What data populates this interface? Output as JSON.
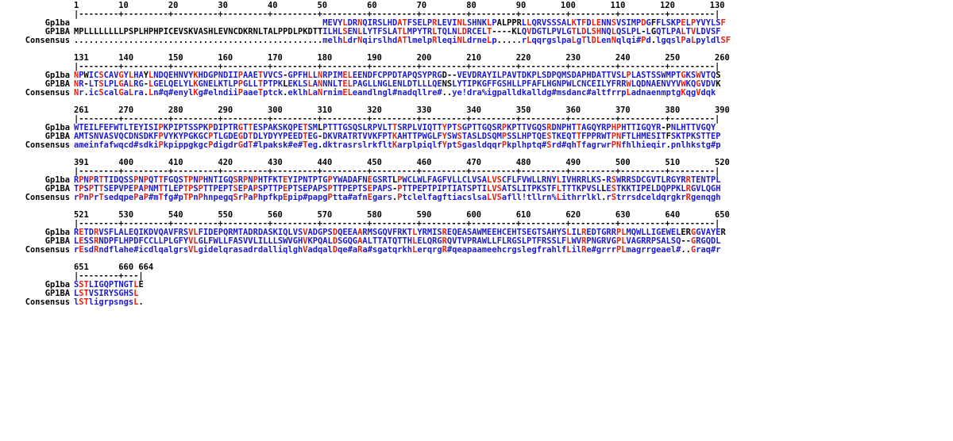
{
  "consensus_colors": {
    "identical": "#e8200e",
    "similar": "#1b1ad0",
    "other": "#000000"
  },
  "blocks": [
    {
      "ruler": "1        10        20        30        40        50        60        70        80        90       100       110       120       130",
      "ticks": "|--------+---------+---------+---------+---------+---------+---------+---------+---------+---------+---------+---------+---------|",
      "rows": [
        {
          "name": "Gp1ba",
          "seq": "                                                  MEVYLDRNQIRSLHDATFSELPRLEVINLSHNKLPALPPRLLQRVSSSALKTFDLENNSVSIMPDGFFLSKPELPYVYLSF"
        },
        {
          "name": "GP1BA",
          "seq": "MPLLLLLLLLPSPLHPHPICEVSKVASHLEVNCDKRNLTALPPDLPKDTTILHLSENLLYTFSLATLMPYTRLTQLNLDRCELT----KLQVDGTLPVLGTLDLSHNQLQSLPL-LGQTLPALTVLDVSF"
        },
        {
          "name": "Consensus",
          "seq": "..................................................melhLdrNqirslhdATlmelpRleqiNLdrneLp.....rLqqrgslpaLgTlDLenNqlqi#Pd.lgqslPaLpyldlSF"
        }
      ]
    },
    {
      "ruler": "131      140       150       160       170       180       190       200       210       220       230       240       250       260",
      "ticks": "|--------+---------+---------+---------+---------+---------+---------+---------+---------+---------+---------+---------+---------|",
      "rows": [
        {
          "name": "Gp1ba",
          "seq": "NPWICSCAVGYLHAYLNDQEHNVYKHDGPNDIIPAAETVVCS-GPFHLLNRPIMELEENDFCPPDTAPQSYPRGD--VEVDRAYILPAVTDKPLSDPQMSDAPHDATTVSLPLASTSSWMPTGKSWVTQS"
        },
        {
          "name": "GP1BA",
          "seq": "NR-LTSLPLGALRG-LGELQELYLKGNELKTLPPGLLTPTPKLEKLSLANNNLTELPAGLLNGLENLDTLLLQENSLYTIPKGFFGSHLLPFAFLHGNPWLCNCEILYFRRWLQDNAENVYVWKQGVDVK"
        },
        {
          "name": "Consensus",
          "seq": "Nr.icScalGaLra.Ln#q#enylKg#elndiiPaaeTptck.eklhLaNrnimELeandlngl#nadqllre#..ye!dra%igpalldkalldg#msdanc#altfrrpLadnaenmptgKqgVdqk"
        }
      ]
    },
    {
      "ruler": "261      270       280       290       300       310       320       330       340       350       360       370       380       390",
      "ticks": "|--------+---------+---------+---------+---------+---------+---------+---------+---------+---------+---------+---------+---------|",
      "rows": [
        {
          "name": "Gp1ba",
          "seq": "WTEILFEFWTLTEYISIPKPIPTSSPKPDIPTRGTTESPAKSKQPETSMLPTTTGSQSLRPVLTTSRPLVIQTTYPTSGPTTGQSRPKPTTVGQSRDNPHTTAGQYRPHPHTTIGQYR-PNLHTTVGQY"
        },
        {
          "name": "GP1BA",
          "seq": "AMTSNVASVQCDNSDKFPVYKYPGKGCPTLGDEGDTDLYDYYPEEDTEG-DKVRATRTVVKFPTKAHTTPWGLFYSWSTASLDSQMPSSLHPTQESTKEQTTFPPRWTPNFTLHMESITFSKTPKSTTEP"
        },
        {
          "name": "Consensus",
          "seq": "ameinfafwqcd#sdkiPkpippgkgcPdigdrGdT#lpaksk#e#Teg.dktrasrslrkfltKarplpiqlfYptSgasldqqrPkplhptq#Srd#qhTfagrwrPNfhlhieqir.pnlhkstg#p"
        }
      ]
    },
    {
      "ruler": "391      400       410       420       430       440       450       460       470       480       490       500       510       520",
      "ticks": "|--------+---------+---------+---------+---------+---------+---------+---------+---------+---------+---------+---------+---------|",
      "rows": [
        {
          "name": "Gp1ba",
          "seq": "RPNPRTTIDQSSPNPQTTFGQSTPNPHNTIGQSRPNPHTFKTEYIPNTPTGPYWADAFNEGSRTLPWCLWLFAGFVLLCLVSALVSCFLFVWLLRNYLIVHRRLKS-RSWRRSDCGVTLRGYRRTENTPL"
        },
        {
          "name": "GP1BA",
          "seq": "TPSPTTSEPVPEPAPNMTTLEPTPSPTTPEPTSEPAPSPTTPEPTSEPAPSPTTPEPTSEPAPS-PTTPEPTPIPTIATSPTILVSATSLITPKSTFLTTTKPVSLLESTKKTIPELDQPPKLRGVLQGH"
        },
        {
          "name": "Consensus",
          "seq": "rPnPrTsedqpePaP#mTfg#pTPnPhnpegqSrPaPhpfkpEpip#papgPtta#afnEgars.PtclelfagftiacslsaLVSafll!tllrn%Lithrrlkl.rStrrsdceldqrgkrRgenqgh"
        }
      ]
    },
    {
      "ruler": "521      530       540       550       560       570       580       590       600       610       620       630       640       650",
      "ticks": "|--------+---------+---------+---------+---------+---------+---------+---------+---------+---------+---------+---------+---------|",
      "rows": [
        {
          "name": "Gp1ba",
          "seq": "RETDRVSFLALEQIKDVQAVFRSVLFIDEPQRMTADRDASKIQLVSVADGPSDQEEAARMSGQVFRKTLYRMISREQEASAWMEEHCEHTSEGTSAHYSLILREDTGRRPLMQWLLIGEWELERGGVAYER"
        },
        {
          "name": "GP1BA",
          "seq": "LESSRNDPFLHPDFCCLLPLGFYVLGLFWLLFASVVLILLLSWVGHVKPQALDSGQGAALTTATQTTHLELQRGRQVTVPRAWLLFLRGSLPTFRSSLFLWVRPNGRVGPLVAGRRPSALSQ--GRGQDL"
        },
        {
          "name": "Consensus",
          "seq": "rEsdRndflahe#icdlqalgrsVLgidelqrasadrdalliqlghVadqalDqe#aRa#sgatqrkhLerqrgR#qeapaameehcrgslegfrahlfLilRe#grrrPLmagrrgeael#..Graq#r"
        }
      ]
    },
    {
      "ruler": "651      660 664",
      "ticks": "|--------+---|",
      "rows": [
        {
          "name": "Gp1ba",
          "seq": "SSTLIGQPTNGTLE"
        },
        {
          "name": "GP1BA",
          "seq": "LSTVSIRYSGHSL"
        },
        {
          "name": "Consensus",
          "seq": "lSTligrpsngsL."
        }
      ]
    }
  ]
}
